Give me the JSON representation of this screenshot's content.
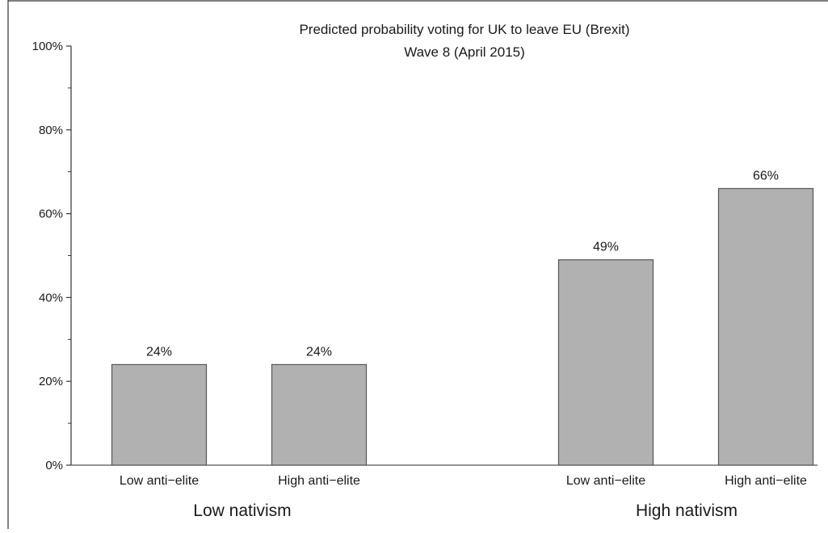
{
  "chart_data": {
    "type": "bar",
    "title": "Predicted probability voting for UK to leave EU (Brexit)",
    "subtitle": "Wave 8 (April 2015)",
    "xlabel": "",
    "ylabel": "",
    "ylim": [
      0,
      100
    ],
    "y_ticks": [
      "0%",
      "20%",
      "40%",
      "60%",
      "80%",
      "100%"
    ],
    "y_tick_values": [
      0,
      20,
      40,
      60,
      80,
      100
    ],
    "grid": false,
    "groups": [
      {
        "label": "Low nativism",
        "bars": [
          {
            "category": "Low anti−elite",
            "value": 24,
            "label": "24%"
          },
          {
            "category": "High anti−elite",
            "value": 24,
            "label": "24%"
          }
        ]
      },
      {
        "label": "High nativism",
        "bars": [
          {
            "category": "Low anti−elite",
            "value": 49,
            "label": "49%"
          },
          {
            "category": "High anti−elite",
            "value": 66,
            "label": "66%"
          }
        ]
      }
    ],
    "colors": {
      "bar_fill": "#b0b1b0",
      "bar_stroke": "#555555",
      "axis": "#333333"
    }
  }
}
